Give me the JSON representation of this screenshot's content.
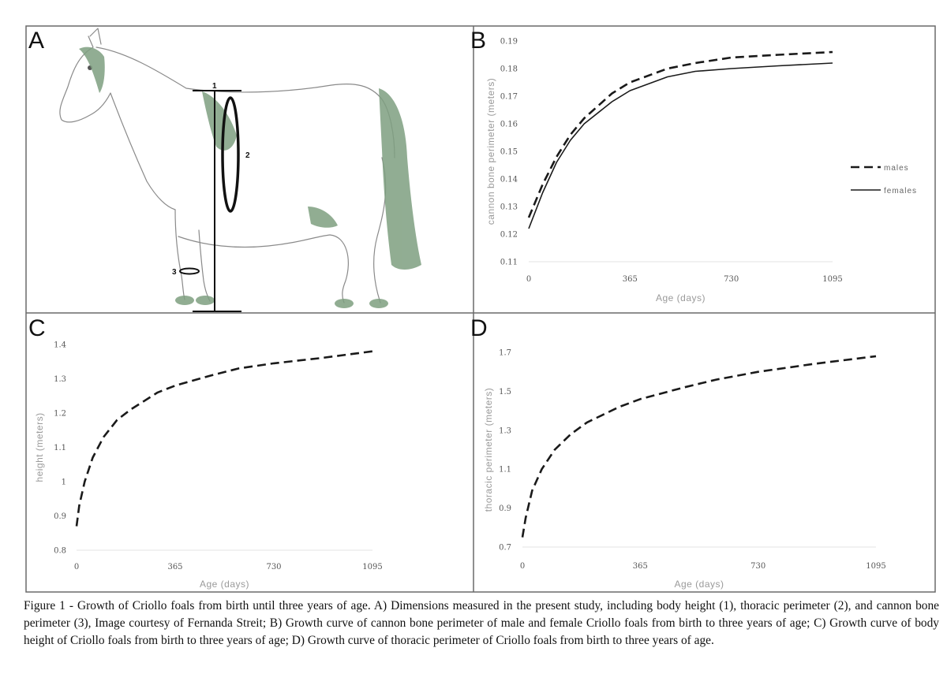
{
  "panels": {
    "A": {
      "letter": "A",
      "markers": [
        "1",
        "2",
        "3"
      ]
    },
    "B": {
      "letter": "B"
    },
    "C": {
      "letter": "C"
    },
    "D": {
      "letter": "D"
    }
  },
  "chart_data": [
    {
      "panel": "B",
      "type": "line",
      "title": "",
      "xlabel": "Age (days)",
      "ylabel": "cannon bone perimeter (meters)",
      "x_ticks": [
        0,
        365,
        730,
        1095
      ],
      "y_ticks": [
        "0.11",
        "0.12",
        "0.13",
        "0.14",
        "0.15",
        "0.16",
        "0.17",
        "0.18",
        "0.19"
      ],
      "xlim": [
        0,
        1095
      ],
      "ylim": [
        0.11,
        0.19
      ],
      "grid": false,
      "legend_position": "right",
      "series": [
        {
          "name": "males",
          "style": "dashed",
          "x": [
            0,
            50,
            100,
            150,
            200,
            300,
            365,
            500,
            600,
            730,
            900,
            1095
          ],
          "y": [
            0.126,
            0.138,
            0.148,
            0.156,
            0.162,
            0.171,
            0.175,
            0.18,
            0.182,
            0.184,
            0.185,
            0.186
          ]
        },
        {
          "name": "females",
          "style": "solid",
          "x": [
            0,
            50,
            100,
            150,
            200,
            300,
            365,
            500,
            600,
            730,
            900,
            1095
          ],
          "y": [
            0.122,
            0.135,
            0.146,
            0.154,
            0.16,
            0.168,
            0.172,
            0.177,
            0.179,
            0.18,
            0.181,
            0.182
          ]
        }
      ]
    },
    {
      "panel": "C",
      "type": "line",
      "title": "",
      "xlabel": "Age (days)",
      "ylabel": "height (meters)",
      "x_ticks": [
        0,
        365,
        730,
        1095
      ],
      "y_ticks": [
        "0.8",
        "0.9",
        "1",
        "1.1",
        "1.2",
        "1.3",
        "1.4"
      ],
      "xlim": [
        0,
        1095
      ],
      "ylim": [
        0.8,
        1.4
      ],
      "grid": false,
      "series": [
        {
          "style": "dashed",
          "x": [
            0,
            10,
            30,
            60,
            100,
            150,
            200,
            300,
            365,
            500,
            600,
            730,
            900,
            1095
          ],
          "y": [
            0.87,
            0.93,
            1.0,
            1.07,
            1.13,
            1.18,
            1.21,
            1.26,
            1.28,
            1.31,
            1.33,
            1.345,
            1.36,
            1.38
          ]
        }
      ]
    },
    {
      "panel": "D",
      "type": "line",
      "title": "",
      "xlabel": "Age (days)",
      "ylabel": "thoracic perimeter (meters)",
      "x_ticks": [
        0,
        365,
        730,
        1095
      ],
      "y_ticks": [
        "0.7",
        "0.9",
        "1.1",
        "1.3",
        "1.5",
        "1.7"
      ],
      "xlim": [
        0,
        1095
      ],
      "ylim": [
        0.7,
        1.7
      ],
      "grid": false,
      "series": [
        {
          "style": "dashed",
          "x": [
            0,
            10,
            30,
            60,
            100,
            150,
            200,
            300,
            365,
            500,
            600,
            730,
            900,
            1095
          ],
          "y": [
            0.75,
            0.85,
            0.99,
            1.1,
            1.2,
            1.28,
            1.34,
            1.42,
            1.46,
            1.52,
            1.56,
            1.6,
            1.64,
            1.68
          ]
        }
      ]
    }
  ],
  "caption": {
    "text": "Figure 1 - Growth of Criollo foals from birth until three years of age. A) Dimensions measured in the present study, including body height (1), thoracic perimeter (2), and cannon bone perimeter (3), Image courtesy of Fernanda Streit; B) Growth curve of cannon bone perimeter of male and female Criollo foals from birth to three years of age; C) Growth curve of body height of Criollo foals from birth to three years of age; D) Growth curve of thoracic perimeter of Criollo foals from birth to three years of age."
  },
  "colors": {
    "frame": "#6a6a6a",
    "curve": "#1a1a1a",
    "sketch": "#8a8a8a",
    "mane": "#7e9f80",
    "hoof": "#6f8a72"
  }
}
